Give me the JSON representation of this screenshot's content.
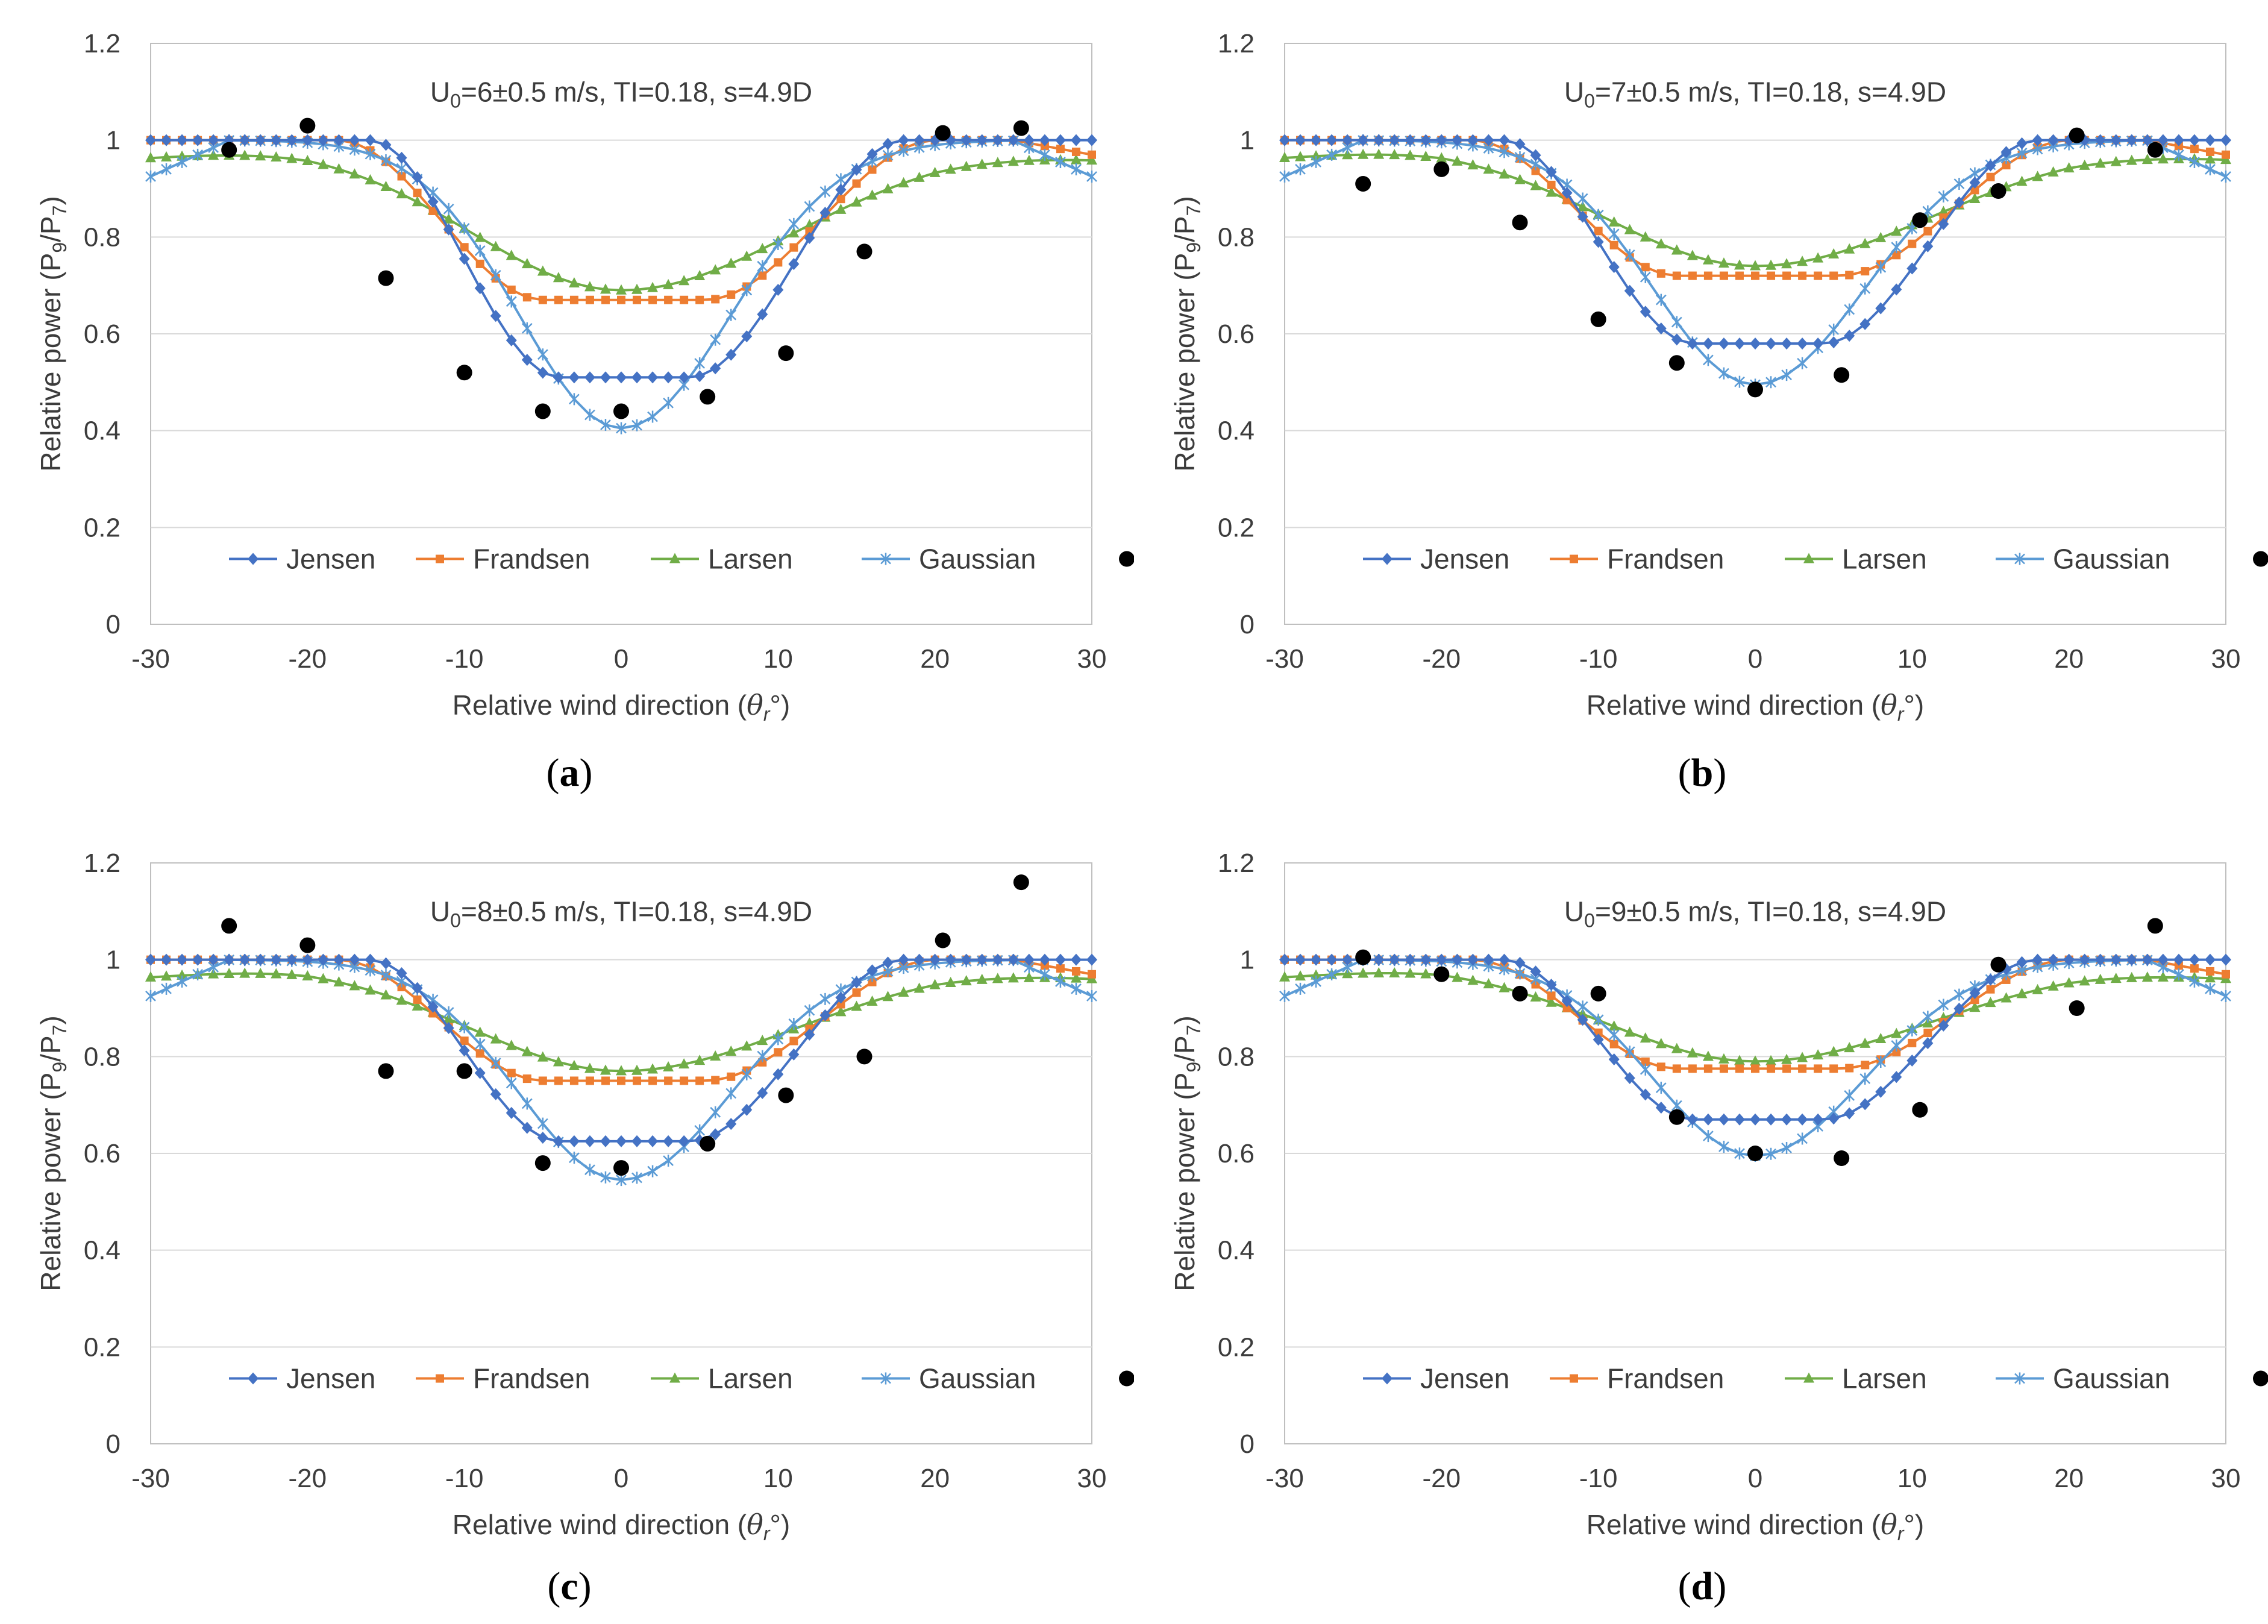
{
  "figure": {
    "panel_letters": [
      "a",
      "b",
      "c",
      "d"
    ]
  },
  "legend_order": [
    "Jensen",
    "Frandsen",
    "Larsen",
    "Gaussian",
    "SCADA"
  ],
  "colors": {
    "Jensen": "#4472c4",
    "Frandsen": "#ed7d31",
    "Larsen": "#70ad47",
    "Gaussian": "#5b9bd5",
    "SCADA": "#000000",
    "grid": "#d9d9d9",
    "axis": "#bfbfbf"
  },
  "chart_data": [
    {
      "id": "a",
      "type": "line",
      "annotation": {
        "prefix": "U",
        "sub": "0",
        "suffix": "=6±0.5 m/s, TI=0.18, s=4.9D"
      },
      "xlabel_main": "Relative wind direction (",
      "xlabel_sym": "θ",
      "xlabel_sub": "r",
      "xlabel_end": "°)",
      "ylabel": {
        "pre": "Relative power (P",
        "sub1": "9",
        "mid": "/P",
        "sub2": "7",
        "end": ")"
      },
      "xlim": [
        -30,
        30
      ],
      "ylim": [
        0,
        1.2
      ],
      "xticks": [
        "-30",
        "-20",
        "-10",
        "0",
        "10",
        "20",
        "30"
      ],
      "yticks": [
        "0",
        "0.2",
        "0.4",
        "0.6",
        "0.8",
        "1",
        "1.2"
      ],
      "legend": [
        "Jensen",
        "Frandsen",
        "Larsen",
        "Gaussian",
        "SCADA"
      ],
      "models": {
        "Jensen": {
          "min": 0.51,
          "flat": 4,
          "edge": 16,
          "asym": 2
        },
        "Frandsen": {
          "min": 0.67,
          "flat": 5,
          "edge": 18,
          "asym": 2
        },
        "Larsen": {
          "min": 0.69,
          "sigma": 9.5,
          "asym": 1.5
        },
        "Gaussian": {
          "min": 0.405,
          "sigma": 6.5,
          "asym": 0.5
        }
      },
      "scada": [
        [
          -25,
          0.98
        ],
        [
          -20,
          1.03
        ],
        [
          -15,
          0.715
        ],
        [
          -10,
          0.52
        ],
        [
          -5,
          0.44
        ],
        [
          0,
          0.44
        ],
        [
          5.5,
          0.47
        ],
        [
          10.5,
          0.56
        ],
        [
          15.5,
          0.77
        ],
        [
          20.5,
          1.015
        ],
        [
          25.5,
          1.025
        ]
      ]
    },
    {
      "id": "b",
      "type": "line",
      "annotation": {
        "prefix": "U",
        "sub": "0",
        "suffix": "=7±0.5 m/s, TI=0.18, s=4.9D"
      },
      "xlabel_main": "Relative wind direction (",
      "xlabel_sym": "θ",
      "xlabel_sub": "r",
      "xlabel_end": "°)",
      "ylabel": {
        "pre": "Relative power (P",
        "sub1": "9",
        "mid": "/P",
        "sub2": "7",
        "end": ")"
      },
      "xlim": [
        -30,
        30
      ],
      "ylim": [
        0,
        1.2
      ],
      "xticks": [
        "-30",
        "-20",
        "-10",
        "0",
        "10",
        "20",
        "30"
      ],
      "yticks": [
        "0",
        "0.2",
        "0.4",
        "0.6",
        "0.8",
        "1",
        "1.2"
      ],
      "legend": [
        "Jensen",
        "Frandsen",
        "Larsen",
        "Gaussian",
        "SCADA"
      ],
      "models": {
        "Jensen": {
          "min": 0.58,
          "flat": 4,
          "edge": 16,
          "asym": 2
        },
        "Frandsen": {
          "min": 0.72,
          "flat": 5,
          "edge": 18,
          "asym": 2
        },
        "Larsen": {
          "min": 0.74,
          "sigma": 9.5,
          "asym": 1.5
        },
        "Gaussian": {
          "min": 0.495,
          "sigma": 6.5,
          "asym": 0.5
        }
      },
      "scada": [
        [
          -25,
          0.91
        ],
        [
          -20,
          0.94
        ],
        [
          -15,
          0.83
        ],
        [
          -10,
          0.63
        ],
        [
          -5,
          0.54
        ],
        [
          0,
          0.485
        ],
        [
          5.5,
          0.515
        ],
        [
          10.5,
          0.835
        ],
        [
          15.5,
          0.895
        ],
        [
          20.5,
          1.01
        ],
        [
          25.5,
          0.98
        ]
      ]
    },
    {
      "id": "c",
      "type": "line",
      "annotation": {
        "prefix": "U",
        "sub": "0",
        "suffix": "=8±0.5 m/s, TI=0.18, s=4.9D"
      },
      "xlabel_main": "Relative wind direction (",
      "xlabel_sym": "θ",
      "xlabel_sub": "r",
      "xlabel_end": "°)",
      "ylabel": {
        "pre": "Relative power (P",
        "sub1": "9",
        "mid": "/P",
        "sub2": "7",
        "end": ")"
      },
      "xlim": [
        -30,
        30
      ],
      "ylim": [
        0,
        1.2
      ],
      "xticks": [
        "-30",
        "-20",
        "-10",
        "0",
        "10",
        "20",
        "30"
      ],
      "yticks": [
        "0",
        "0.2",
        "0.4",
        "0.6",
        "0.8",
        "1",
        "1.2"
      ],
      "legend": [
        "Jensen",
        "Frandsen",
        "Larsen",
        "Gaussian",
        "SCADA"
      ],
      "models": {
        "Jensen": {
          "min": 0.625,
          "flat": 4,
          "edge": 16,
          "asym": 2
        },
        "Frandsen": {
          "min": 0.75,
          "flat": 5,
          "edge": 18,
          "asym": 2
        },
        "Larsen": {
          "min": 0.77,
          "sigma": 9.5,
          "asym": 1.5
        },
        "Gaussian": {
          "min": 0.545,
          "sigma": 6.5,
          "asym": 0.5
        }
      },
      "scada": [
        [
          -25,
          1.07
        ],
        [
          -20,
          1.03
        ],
        [
          -15,
          0.77
        ],
        [
          -10,
          0.77
        ],
        [
          -5,
          0.58
        ],
        [
          0,
          0.57
        ],
        [
          5.5,
          0.62
        ],
        [
          10.5,
          0.72
        ],
        [
          15.5,
          0.8
        ],
        [
          20.5,
          1.04
        ],
        [
          25.5,
          1.16
        ]
      ]
    },
    {
      "id": "d",
      "type": "line",
      "annotation": {
        "prefix": "U",
        "sub": "0",
        "suffix": "=9±0.5 m/s, TI=0.18, s=4.9D"
      },
      "xlabel_main": "Relative wind direction (",
      "xlabel_sym": "θ",
      "xlabel_sub": "r",
      "xlabel_end": "°)",
      "ylabel": {
        "pre": "Relative power (P",
        "sub1": "9",
        "mid": "/P",
        "sub2": "7",
        "end": ")"
      },
      "xlim": [
        -30,
        30
      ],
      "ylim": [
        0,
        1.2
      ],
      "xticks": [
        "-30",
        "-20",
        "-10",
        "0",
        "10",
        "20",
        "30"
      ],
      "yticks": [
        "0",
        "0.2",
        "0.4",
        "0.6",
        "0.8",
        "1",
        "1.2"
      ],
      "legend": [
        "Jensen",
        "Frandsen",
        "Larsen",
        "Gaussian",
        "SCADA"
      ],
      "models": {
        "Jensen": {
          "min": 0.67,
          "flat": 4,
          "edge": 16,
          "asym": 2
        },
        "Frandsen": {
          "min": 0.775,
          "flat": 5,
          "edge": 18,
          "asym": 2
        },
        "Larsen": {
          "min": 0.79,
          "sigma": 9.5,
          "asym": 1.5
        },
        "Gaussian": {
          "min": 0.595,
          "sigma": 6.5,
          "asym": 0.5
        }
      },
      "scada": [
        [
          -25,
          1.005
        ],
        [
          -20,
          0.97
        ],
        [
          -15,
          0.93
        ],
        [
          -10,
          0.93
        ],
        [
          -5,
          0.675
        ],
        [
          0,
          0.6
        ],
        [
          5.5,
          0.59
        ],
        [
          10.5,
          0.69
        ],
        [
          15.5,
          0.99
        ],
        [
          20.5,
          0.9
        ],
        [
          25.5,
          1.07
        ]
      ]
    }
  ]
}
